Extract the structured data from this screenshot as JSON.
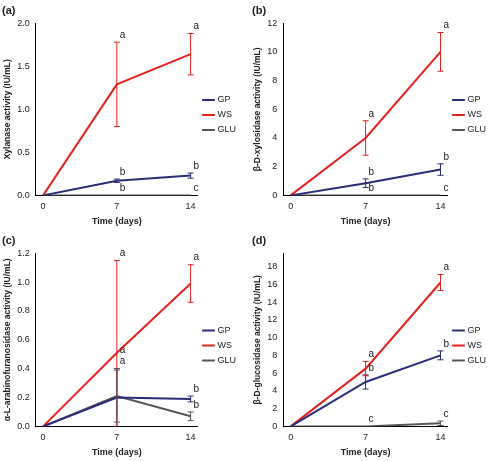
{
  "chart_data": [
    {
      "type": "line",
      "title": "(a)",
      "x_label": "Time (days)",
      "y_label": "Xylanase activity (IU/mL)",
      "x": [
        0,
        7,
        14
      ],
      "xlim": [
        -0.7,
        14.7
      ],
      "xticks": [
        0,
        7,
        14
      ],
      "ylim": [
        0,
        2
      ],
      "yticks": [
        {
          "value": 0,
          "label": "0.0"
        },
        {
          "value": 0.5,
          "label": "0.5"
        },
        {
          "value": 1,
          "label": "1.0"
        },
        {
          "value": 1.5,
          "label": "1.5"
        },
        {
          "value": 2,
          "label": "2.0"
        }
      ],
      "grid": false,
      "legend": "right",
      "series": [
        {
          "name": "GP",
          "color": "#2b2d78",
          "values": [
            0,
            0.17,
            0.23
          ],
          "errors": [
            0,
            0.02,
            0.03
          ],
          "letters": [
            null,
            "b",
            "b"
          ]
        },
        {
          "name": "WS",
          "color": "#e3231f",
          "values": [
            0,
            1.29,
            1.64
          ],
          "errors": [
            0,
            0.49,
            0.24
          ],
          "letters": [
            null,
            "a",
            "a"
          ]
        },
        {
          "name": "GLU",
          "color": "#555555",
          "values": [
            0,
            0,
            0
          ],
          "errors": [
            0,
            0,
            0
          ],
          "letters": [
            null,
            "b",
            "c"
          ]
        }
      ]
    },
    {
      "type": "line",
      "title": "(b)",
      "x_label": "Time (days)",
      "y_label": "β-D-xylosidase activity (IU/mL)",
      "x": [
        0,
        7,
        14
      ],
      "xlim": [
        -0.7,
        14.7
      ],
      "xticks": [
        0,
        7,
        14
      ],
      "ylim": [
        0,
        12
      ],
      "yticks": [
        0,
        2,
        4,
        6,
        8,
        10,
        12
      ],
      "grid": false,
      "legend": "right",
      "series": [
        {
          "name": "GP",
          "color": "#2b2d78",
          "values": [
            0,
            0.85,
            1.8
          ],
          "errors": [
            0,
            0.3,
            0.4
          ],
          "letters": [
            null,
            "b",
            "b"
          ]
        },
        {
          "name": "WS",
          "color": "#e3231f",
          "values": [
            0,
            4.0,
            10.0
          ],
          "errors": [
            0,
            1.2,
            1.35
          ],
          "letters": [
            null,
            "a",
            "a"
          ]
        },
        {
          "name": "GLU",
          "color": "#555555",
          "values": [
            0,
            0,
            0
          ],
          "errors": [
            0,
            0,
            0
          ],
          "letters": [
            null,
            "b",
            "c"
          ]
        }
      ]
    },
    {
      "type": "line",
      "title": "(c)",
      "x_label": "Time (days)",
      "y_label": "α-L-arabinofuranosidase activity (IU/mL)",
      "x": [
        0,
        7,
        14
      ],
      "xlim": [
        -0.7,
        14.7
      ],
      "xticks": [
        0,
        7,
        14
      ],
      "ylim": [
        0,
        1.2
      ],
      "yticks": [
        {
          "value": 0,
          "label": "0.0"
        },
        {
          "value": 0.2,
          "label": "0.2"
        },
        {
          "value": 0.4,
          "label": "0.4"
        },
        {
          "value": 0.6,
          "label": "0.6"
        },
        {
          "value": 0.8,
          "label": "0.8"
        },
        {
          "value": 1,
          "label": "1.0"
        },
        {
          "value": 1.2,
          "label": "1.2"
        }
      ],
      "grid": false,
      "legend": "right",
      "series": [
        {
          "name": "GP",
          "color": "#2b2d78",
          "values": [
            0,
            0.2,
            0.19
          ],
          "errors": [
            0,
            0.2,
            0.02
          ],
          "letters": [
            null,
            "a",
            "b"
          ]
        },
        {
          "name": "WS",
          "color": "#e3231f",
          "values": [
            0,
            0.51,
            0.99
          ],
          "errors": [
            0,
            0.64,
            0.13
          ],
          "letters": [
            null,
            "a",
            "a"
          ]
        },
        {
          "name": "GLU",
          "color": "#555555",
          "values": [
            0,
            0.21,
            0.07
          ],
          "errors": [
            0,
            0.18,
            0.03
          ],
          "letters": [
            null,
            "a",
            "b"
          ]
        }
      ]
    },
    {
      "type": "line",
      "title": "(d)",
      "x_label": "Time (days)",
      "y_label": "β-D-glucosidase activity (IU/mL)",
      "x": [
        0,
        7,
        14
      ],
      "xlim": [
        -0.7,
        14.7
      ],
      "xticks": [
        0,
        7,
        14
      ],
      "ylim": [
        0,
        19.5
      ],
      "yticks": [
        0,
        2,
        4,
        6,
        8,
        10,
        12,
        14,
        16,
        18
      ],
      "grid": false,
      "legend": "right",
      "series": [
        {
          "name": "GP",
          "color": "#2b2d78",
          "values": [
            0,
            5.0,
            8.0
          ],
          "errors": [
            0,
            0.8,
            0.5
          ],
          "letters": [
            null,
            "b",
            "b"
          ]
        },
        {
          "name": "WS",
          "color": "#e3231f",
          "values": [
            0,
            6.5,
            16.2
          ],
          "errors": [
            0,
            0.8,
            0.9
          ],
          "letters": [
            null,
            "a",
            "a"
          ]
        },
        {
          "name": "GLU",
          "color": "#555555",
          "values": [
            0,
            0,
            0.35
          ],
          "errors": [
            0,
            0,
            0.25
          ],
          "letters": [
            null,
            "c",
            "c"
          ]
        }
      ]
    }
  ]
}
